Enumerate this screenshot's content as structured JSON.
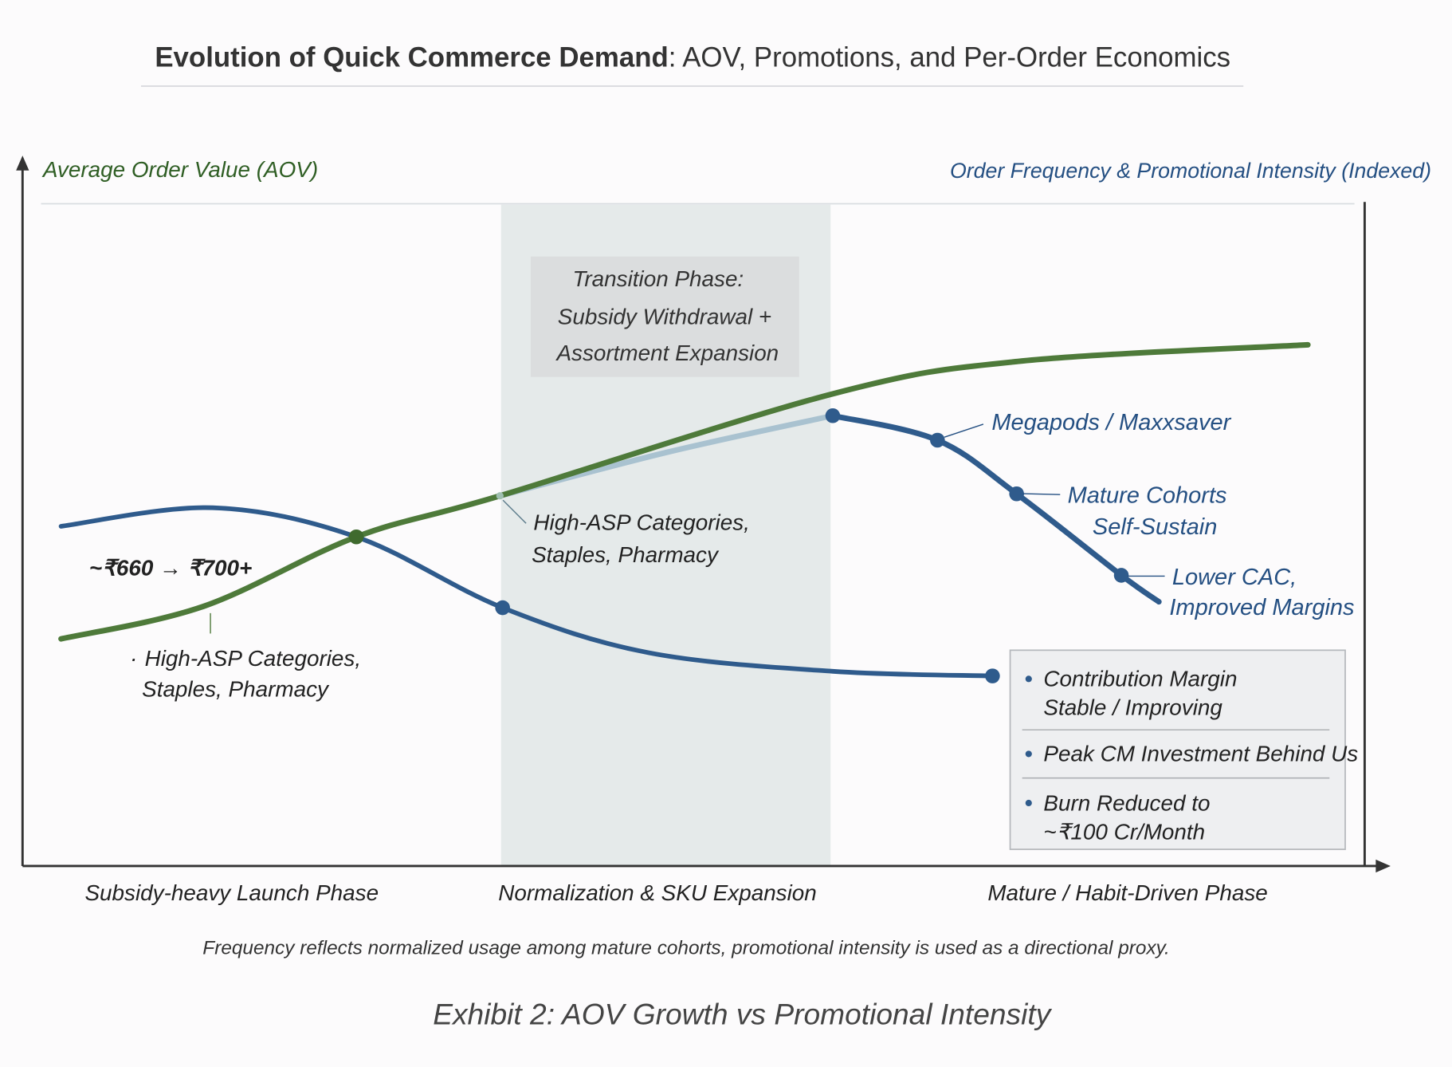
{
  "title": {
    "bold": "Evolution of Quick Commerce Demand",
    "rest": ": AOV, Promotions, and Per-Order Economics"
  },
  "caption": "Exhibit 2: AOV Growth vs Promotional Intensity",
  "footnote": "Frequency reflects normalized usage among mature cohorts, promotional intensity is used as a directional proxy.",
  "colors": {
    "aov": "#4e7a3a",
    "frequency": "#2f5b8c",
    "transition_band": "#e4eaea",
    "label_green": "#2f5e24",
    "label_blue": "#244f82"
  },
  "chart_data": {
    "type": "line",
    "title": "Evolution of Quick Commerce Demand: AOV, Promotions, and Per-Order Economics",
    "ylabel_left": "Average Order Value (AOV)",
    "ylabel_right": "Order Frequency & Promotional Intensity (Indexed)",
    "x_categories": [
      "Subsidy-heavy Launch Phase",
      "Normalization & SKU Expansion",
      "Mature / Habit-Driven Phase"
    ],
    "xlim": [
      0,
      100
    ],
    "ylim": [
      0,
      100
    ],
    "grid": false,
    "shaded_region": {
      "x": [
        35.6,
        60.2
      ],
      "label": [
        "Transition Phase:",
        "Subsidy Withdrawal +",
        "Assortment Expansion"
      ]
    },
    "series": [
      {
        "key": "aov",
        "x": [
          2.8,
          13.4,
          24.8,
          35.5,
          60.3,
          74.1,
          95.7
        ],
        "y": [
          34.3,
          39.2,
          49.7,
          55.9,
          71.3,
          76.2,
          78.7
        ]
      },
      {
        "key": "promo",
        "x": [
          2.8,
          14.1,
          24.8,
          35.7,
          46.6,
          60.3,
          72.2
        ],
        "y": [
          51.3,
          54.1,
          49.7,
          39.0,
          32.2,
          29.4,
          28.7
        ]
      },
      {
        "key": "frequency_transition",
        "x": [
          35.5,
          48,
          60.3
        ],
        "y": [
          55.9,
          62.5,
          68.0
        ]
      },
      {
        "key": "frequency",
        "x": [
          60.3,
          68.1,
          74.0,
          81.8,
          84.6
        ],
        "y": [
          68.0,
          64.3,
          56.2,
          43.9,
          39.9
        ]
      }
    ],
    "annotations": {
      "aov_range": "~₹660 → ₹700+",
      "left_note": [
        "High-ASP Categories,",
        "Staples, Pharmacy"
      ],
      "mid_note": [
        "High-ASP Categories,",
        "Staples, Pharmacy"
      ],
      "megapods": "Megapods / Maxxsaver",
      "mature": [
        "Mature Cohorts",
        "Self-Sustain"
      ],
      "lower_cac": [
        "Lower CAC,",
        "Improved Margins"
      ]
    },
    "info_box": [
      [
        "Contribution Margin",
        "Stable / Improving"
      ],
      [
        "Peak CM Investment Behind Us"
      ],
      [
        "Burn Reduced to",
        "~₹100 Cr/Month"
      ]
    ]
  }
}
